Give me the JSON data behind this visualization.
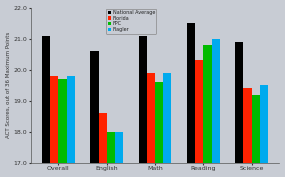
{
  "categories": [
    "Overall",
    "English",
    "Math",
    "Reading",
    "Science"
  ],
  "series": {
    "National Average": [
      21.1,
      20.6,
      21.1,
      21.5,
      20.9
    ],
    "Florida": [
      19.8,
      18.6,
      19.9,
      20.3,
      19.4
    ],
    "FPC": [
      19.7,
      18.0,
      19.6,
      20.8,
      19.2
    ],
    "Flagler": [
      19.8,
      18.0,
      19.9,
      21.0,
      19.5
    ]
  },
  "colors": {
    "National Average": "#000000",
    "Florida": "#ff2200",
    "FPC": "#00bb00",
    "Flagler": "#00aaee"
  },
  "ylabel": "ACT Scores, out of 36 Maximum Points",
  "ylim": [
    17.0,
    22.0
  ],
  "yticks": [
    17.0,
    18.0,
    19.0,
    20.0,
    21.0,
    22.0
  ],
  "background_color": "#c8ccd4",
  "legend_labels": [
    "National Average",
    "Florida",
    "FPC",
    "Flagler"
  ],
  "bar_bottom": 17.0
}
